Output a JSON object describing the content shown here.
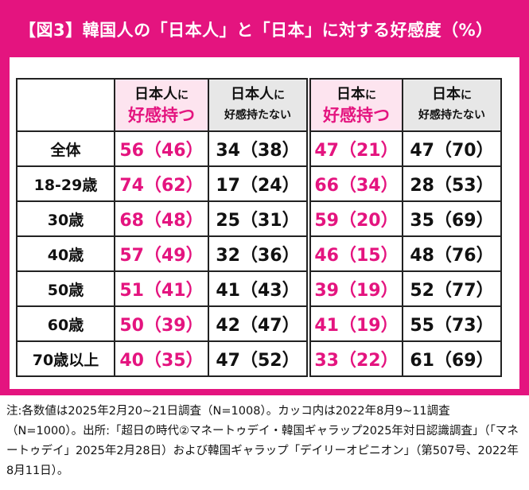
{
  "title": "【図3】韓国人の「日本人」と「日本」に対する好感度（%）",
  "colors": {
    "accent": "#e4147f",
    "pink_header_bg": "#fde4ef",
    "gray_header_bg": "#e7e7e7"
  },
  "table": {
    "headers": [
      {
        "line1": "日本人",
        "line1_suffix": "に",
        "line2": "好感持つ",
        "style": "pink"
      },
      {
        "line1": "日本人",
        "line1_suffix": "に",
        "line2": "好感持たない",
        "style": "dark"
      },
      {
        "line1": "日本",
        "line1_suffix": "に",
        "line2": "好感持つ",
        "style": "pink"
      },
      {
        "line1": "日本",
        "line1_suffix": "に",
        "line2": "好感持たない",
        "style": "dark"
      }
    ],
    "rows": [
      {
        "label": "全体",
        "values": [
          "56（46）",
          "34（38）",
          "47（21）",
          "47（70）"
        ]
      },
      {
        "label": "18-29歳",
        "values": [
          "74（62）",
          "17（24）",
          "66（34）",
          "28（53）"
        ]
      },
      {
        "label": "30歳",
        "values": [
          "68（48）",
          "25（31）",
          "59（20）",
          "35（69）"
        ]
      },
      {
        "label": "40歳",
        "values": [
          "57（49）",
          "32（36）",
          "46（15）",
          "48（76）"
        ]
      },
      {
        "label": "50歳",
        "values": [
          "51（41）",
          "41（43）",
          "39（19）",
          "52（77）"
        ]
      },
      {
        "label": "60歳",
        "values": [
          "50（39）",
          "42（47）",
          "41（19）",
          "55（73）"
        ]
      },
      {
        "label": "70歳以上",
        "values": [
          "40（35）",
          "47（52）",
          "33（22）",
          "61（69）"
        ]
      }
    ]
  },
  "note": "注:各数値は2025年2月20~21日調査（N=1008）。カッコ内は2022年8月9~11調査（N=1000）。出所:「超日の時代②マネートゥデイ・韓国ギャラップ2025年対日認識調査」（「マネートゥデイ」2025年2月28日）および韓国ギャラップ「デイリーオピニオン」（第507号、2022年8月11日）。"
}
